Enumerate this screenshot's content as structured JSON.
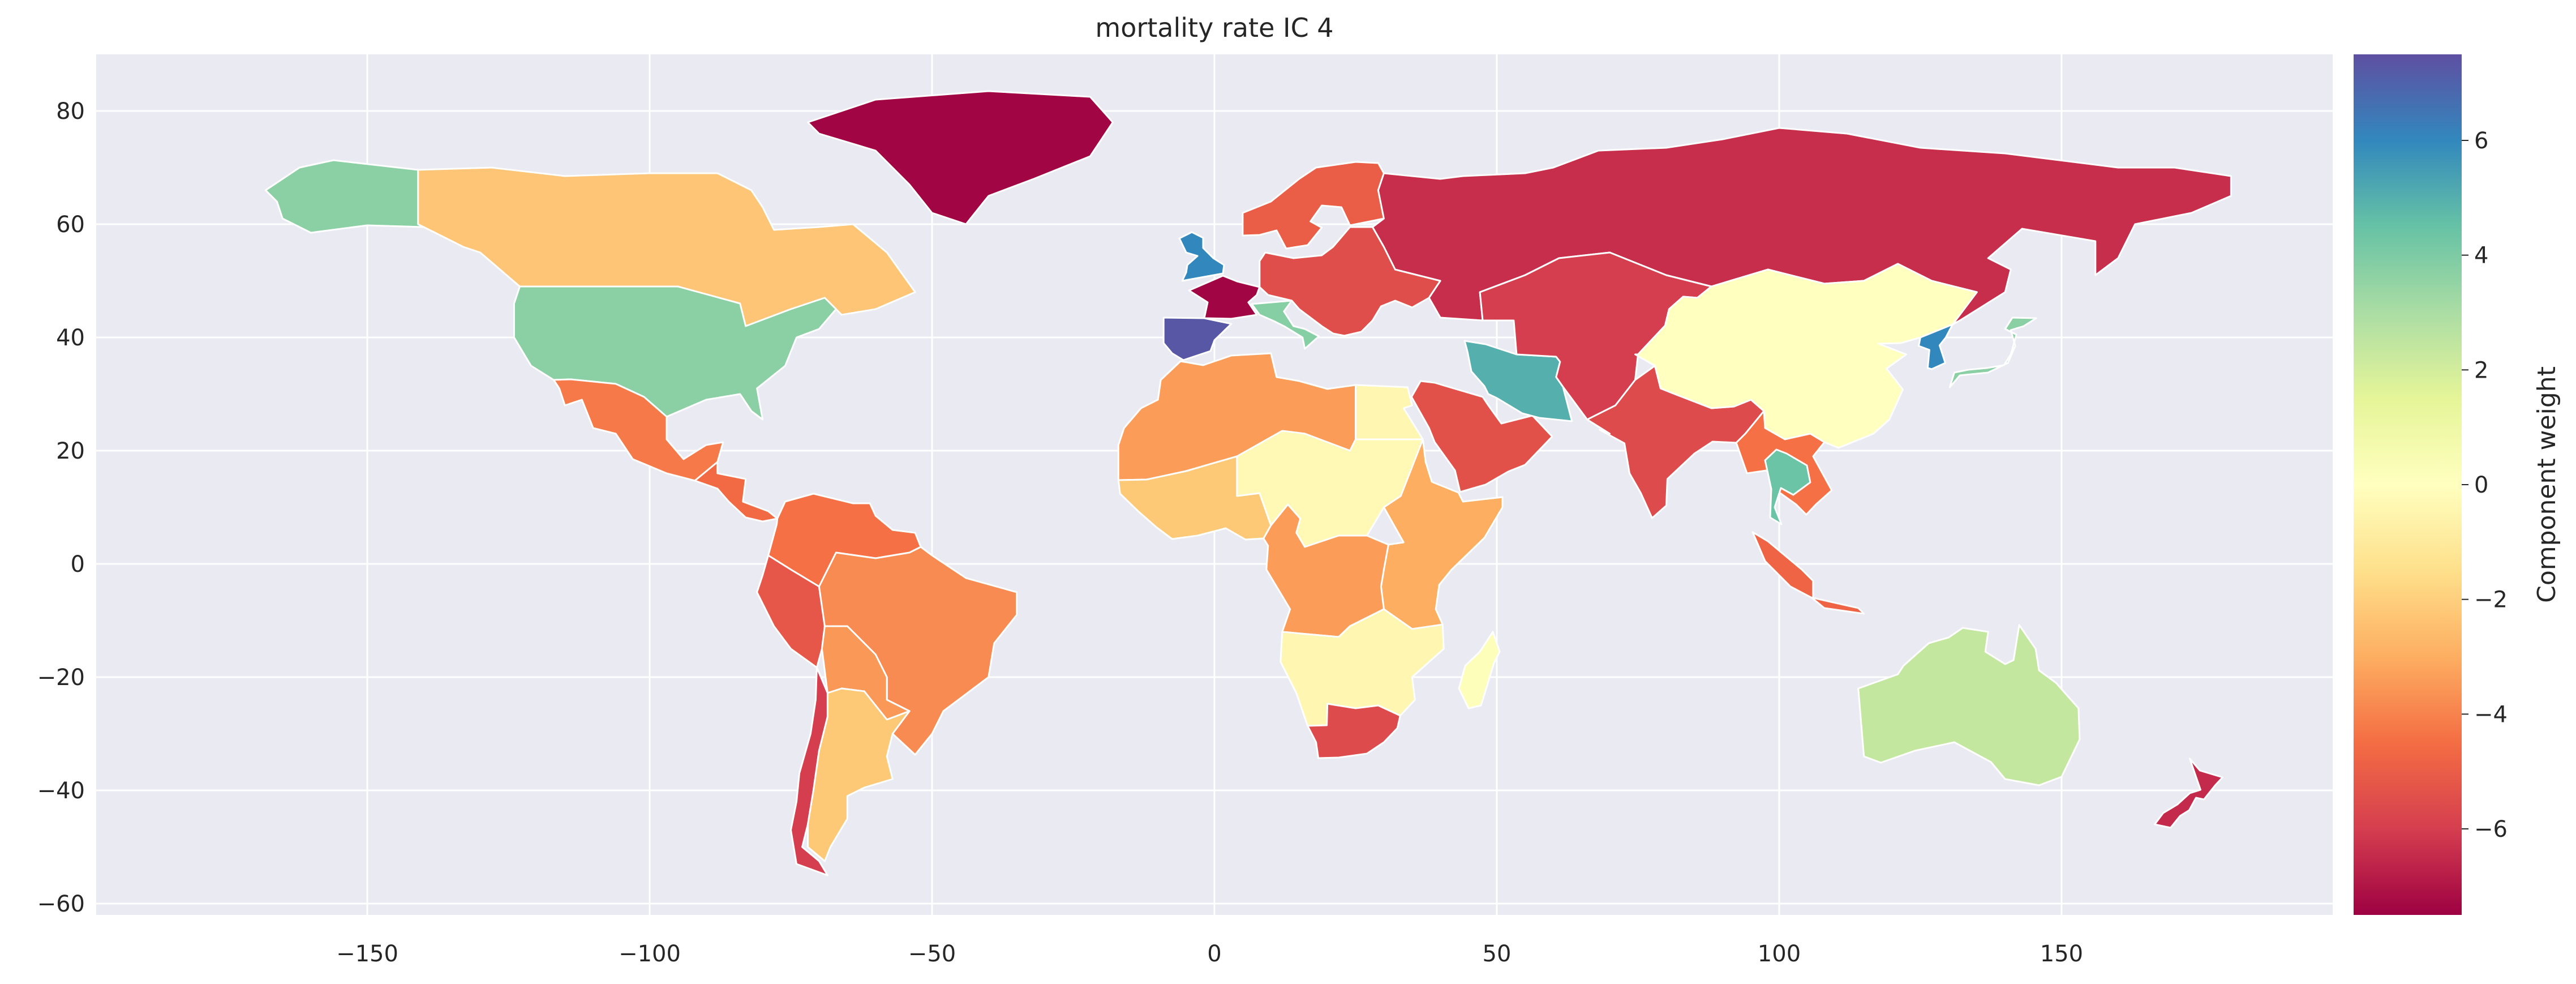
{
  "title": "mortality rate IC 4",
  "colorbar": {
    "label": "Component weight",
    "range": [
      -7.5,
      7.5
    ],
    "ticks": [
      "−6",
      "−4",
      "−2",
      "0",
      "2",
      "4",
      "6"
    ],
    "tick_values": [
      -6,
      -4,
      -2,
      0,
      2,
      4,
      6
    ],
    "colormap": "Spectral",
    "stops": [
      "#9e0142",
      "#d53e4f",
      "#f46d43",
      "#fdae61",
      "#fee08b",
      "#ffffbf",
      "#e6f598",
      "#abdda4",
      "#66c2a5",
      "#3288bd",
      "#5e4fa2"
    ]
  },
  "axes": {
    "x_ticks": [
      "−150",
      "−100",
      "−50",
      "0",
      "50",
      "100",
      "150"
    ],
    "x_tick_values": [
      -150,
      -100,
      -50,
      0,
      50,
      100,
      150
    ],
    "y_ticks": [
      "−60",
      "−40",
      "−20",
      "0",
      "20",
      "40",
      "60",
      "80"
    ],
    "y_tick_values": [
      -60,
      -40,
      -20,
      0,
      20,
      40,
      60,
      80
    ],
    "xlim": [
      -198,
      198
    ],
    "ylim": [
      -62,
      90
    ],
    "background": "#eaeaf2",
    "grid": true
  },
  "chart_data": {
    "type": "choropleth",
    "value_range": [
      -7.5,
      7.5
    ],
    "regions": [
      {
        "id": "greenland",
        "value": -7.4
      },
      {
        "id": "alaska-usa",
        "value": 3.7
      },
      {
        "id": "canada",
        "value": -2.3
      },
      {
        "id": "usa",
        "value": 3.7
      },
      {
        "id": "mexico",
        "value": -4.2
      },
      {
        "id": "central-america",
        "value": -4.6
      },
      {
        "id": "venezuela-colombia",
        "value": -4.4
      },
      {
        "id": "peru-ecuador",
        "value": -5.2
      },
      {
        "id": "brazil",
        "value": -3.8
      },
      {
        "id": "bolivia-paraguay",
        "value": -3.5
      },
      {
        "id": "chile",
        "value": -6.0
      },
      {
        "id": "argentina",
        "value": -2.2
      },
      {
        "id": "france",
        "value": -7.4
      },
      {
        "id": "spain",
        "value": 7.3
      },
      {
        "id": "uk",
        "value": 6.0
      },
      {
        "id": "italy",
        "value": 3.8
      },
      {
        "id": "scandinavia",
        "value": -5.0
      },
      {
        "id": "eastern-europe",
        "value": -5.5
      },
      {
        "id": "russia",
        "value": -6.4
      },
      {
        "id": "north-africa",
        "value": -3.4
      },
      {
        "id": "egypt",
        "value": -0.4
      },
      {
        "id": "west-africa",
        "value": -2.2
      },
      {
        "id": "sahel-central",
        "value": -0.3
      },
      {
        "id": "east-africa",
        "value": -3.0
      },
      {
        "id": "central-africa",
        "value": -3.4
      },
      {
        "id": "southern-africa",
        "value": -0.4
      },
      {
        "id": "south-africa",
        "value": -5.6
      },
      {
        "id": "madagascar",
        "value": 0.2
      },
      {
        "id": "arabia",
        "value": -5.4
      },
      {
        "id": "iran",
        "value": 5.0
      },
      {
        "id": "central-asia",
        "value": -6.0
      },
      {
        "id": "india",
        "value": -5.6
      },
      {
        "id": "china",
        "value": 0.0
      },
      {
        "id": "southeast-asia",
        "value": -4.4
      },
      {
        "id": "thailand",
        "value": 4.4
      },
      {
        "id": "indonesia",
        "value": -4.8
      },
      {
        "id": "japan",
        "value": 3.7
      },
      {
        "id": "korea",
        "value": 6.0
      },
      {
        "id": "australia",
        "value": 2.4
      },
      {
        "id": "new-zealand",
        "value": -6.5
      }
    ]
  }
}
